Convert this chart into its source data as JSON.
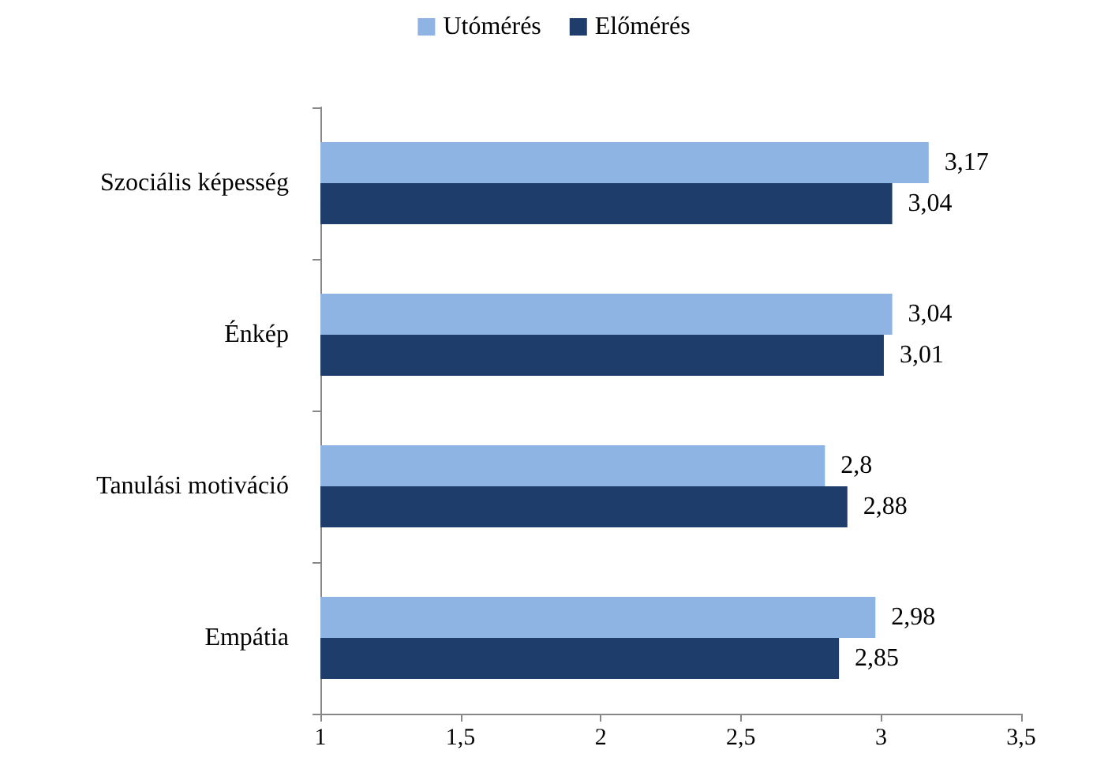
{
  "chart_data": {
    "type": "bar",
    "orientation": "horizontal",
    "categories": [
      "Szociális képesség",
      "Énkép",
      "Tanulási motiváció",
      "Empátia"
    ],
    "series": [
      {
        "name": "Utómérés",
        "color": "#8eb4e3",
        "values": [
          3.17,
          3.04,
          2.8,
          2.98
        ],
        "value_labels": [
          "3,17",
          "3,04",
          "2,8",
          "2,98"
        ]
      },
      {
        "name": "Előmérés",
        "color": "#1f3d6b",
        "values": [
          3.04,
          3.01,
          2.88,
          2.85
        ],
        "value_labels": [
          "3,04",
          "3,01",
          "2,88",
          "2,85"
        ]
      }
    ],
    "xlim": [
      1,
      3.5
    ],
    "xticks": [
      1,
      {
        "value": 1.5,
        "label": "1,5"
      },
      2,
      {
        "value": 2.5,
        "label": "2,5"
      },
      3,
      {
        "value": 3.5,
        "label": "3,5"
      }
    ],
    "grid": false,
    "legend": "top"
  }
}
